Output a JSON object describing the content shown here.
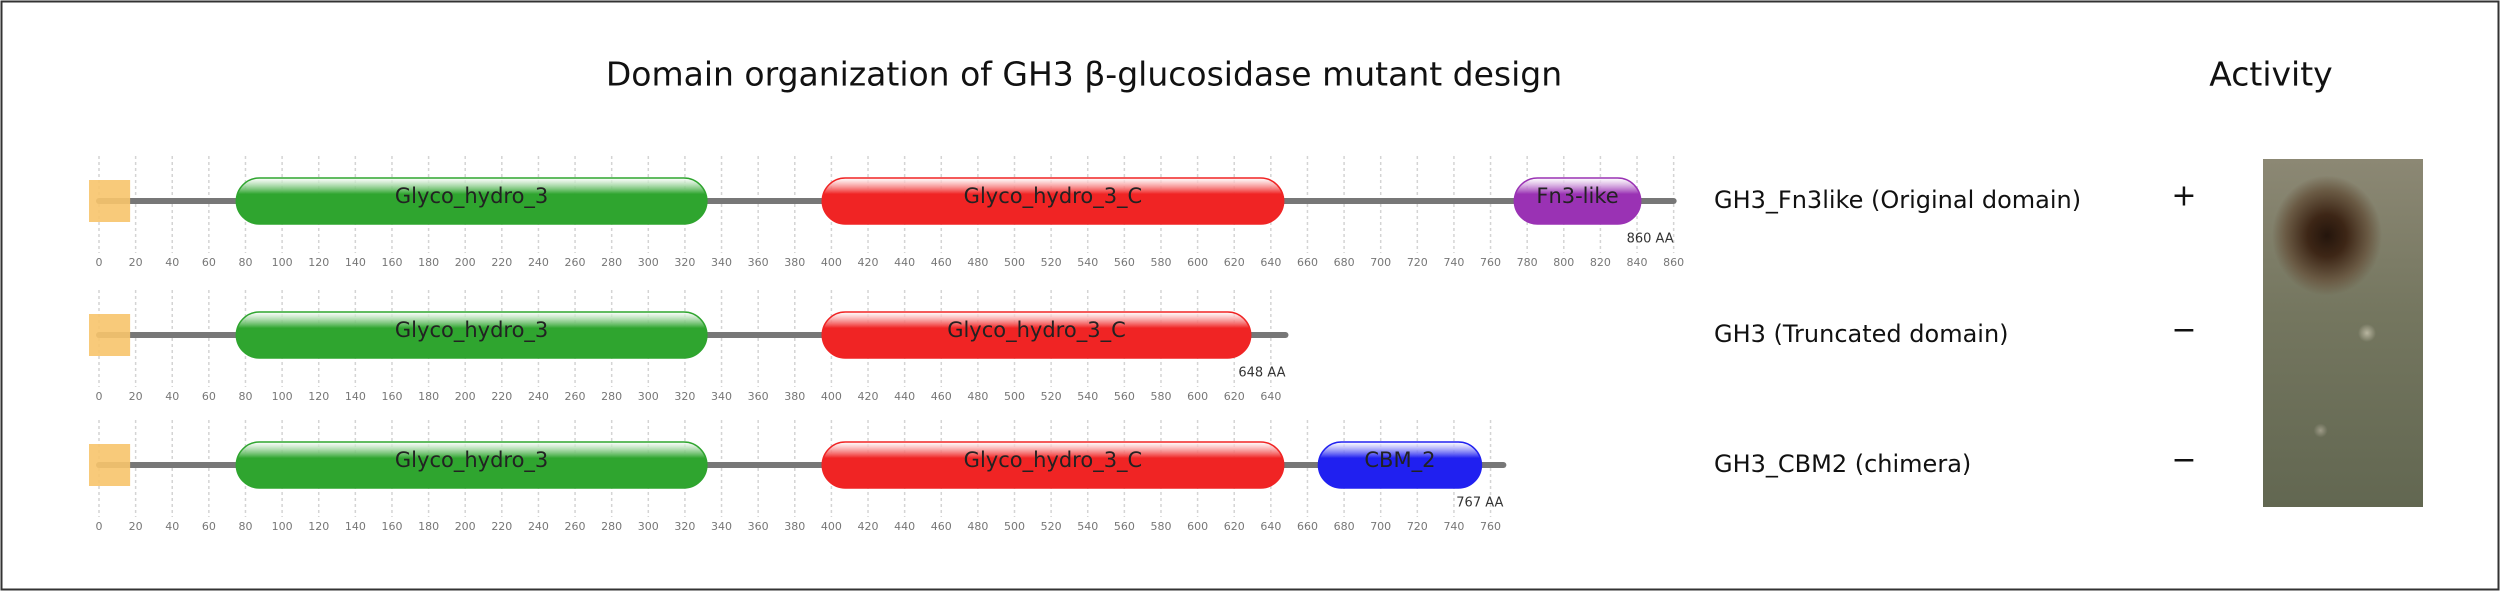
{
  "title": "Domain organization of GH3 β-glucosidase mutant design",
  "activity_header": "Activity",
  "constructs": [
    {
      "name": "GH3_Fn3like (Original domain)",
      "activity": "+",
      "length": {
        "value": 860,
        "label": "860 AA"
      },
      "ticks": [
        0,
        20,
        40,
        60,
        80,
        100,
        120,
        140,
        160,
        180,
        200,
        220,
        240,
        260,
        280,
        300,
        320,
        340,
        360,
        380,
        400,
        420,
        440,
        460,
        480,
        500,
        520,
        540,
        560,
        580,
        600,
        620,
        640,
        660,
        680,
        700,
        720,
        740,
        760,
        780,
        800,
        820,
        840,
        860
      ],
      "signal_peptide": {
        "start": 0,
        "end": 17
      },
      "domains": [
        {
          "label": "Glyco_hydro_3",
          "start": 75,
          "end": 332,
          "color": "#2fa52f"
        },
        {
          "label": "Glyco_hydro_3_C",
          "start": 395,
          "end": 647,
          "color": "#f02424"
        },
        {
          "label": "Fn3-like",
          "start": 773,
          "end": 842,
          "color": "#9a32b4"
        }
      ]
    },
    {
      "name": "GH3 (Truncated domain)",
      "activity": "−",
      "length": {
        "value": 648,
        "label": "648 AA"
      },
      "ticks": [
        0,
        20,
        40,
        60,
        80,
        100,
        120,
        140,
        160,
        180,
        200,
        220,
        240,
        260,
        280,
        300,
        320,
        340,
        360,
        380,
        400,
        420,
        440,
        460,
        480,
        500,
        520,
        540,
        560,
        580,
        600,
        620,
        640
      ],
      "signal_peptide": {
        "start": 0,
        "end": 17
      },
      "domains": [
        {
          "label": "Glyco_hydro_3",
          "start": 75,
          "end": 332,
          "color": "#2fa52f"
        },
        {
          "label": "Glyco_hydro_3_C",
          "start": 395,
          "end": 629,
          "color": "#f02424"
        }
      ]
    },
    {
      "name": "GH3_CBM2 (chimera)",
      "activity": "−",
      "length": {
        "value": 767,
        "label": "767 AA"
      },
      "ticks": [
        0,
        20,
        40,
        60,
        80,
        100,
        120,
        140,
        160,
        180,
        200,
        220,
        240,
        260,
        280,
        300,
        320,
        340,
        360,
        380,
        400,
        420,
        440,
        460,
        480,
        500,
        520,
        540,
        560,
        580,
        600,
        620,
        640,
        660,
        680,
        700,
        720,
        740,
        760
      ],
      "signal_peptide": {
        "start": 0,
        "end": 17
      },
      "domains": [
        {
          "label": "Glyco_hydro_3",
          "start": 75,
          "end": 332,
          "color": "#2fa52f"
        },
        {
          "label": "Glyco_hydro_3_C",
          "start": 395,
          "end": 647,
          "color": "#f02424"
        },
        {
          "label": "CBM_2",
          "start": 666,
          "end": 755,
          "color": "#2020f0"
        }
      ]
    }
  ]
}
